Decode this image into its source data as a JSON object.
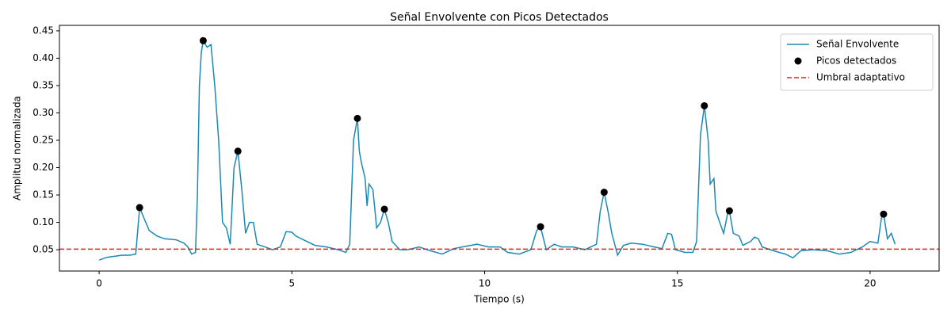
{
  "chart_data": {
    "type": "line",
    "title": "Señal Envolvente con Picos Detectados",
    "x_label": "Tiempo (s)",
    "y_label": "Amplitud normalizada",
    "xlim": [
      -1.03,
      21.79
    ],
    "ylim": [
      0.011,
      0.46
    ],
    "xticks": [
      0,
      5,
      10,
      15,
      20
    ],
    "yticks": [
      0.05,
      {
        "value": 0.1,
        "label": "0.10"
      },
      0.15,
      {
        "value": 0.2,
        "label": "0.20"
      },
      0.25,
      {
        "value": 0.3,
        "label": "0.30"
      },
      0.35,
      {
        "value": 0.4,
        "label": "0.40"
      },
      0.45
    ],
    "grid": false,
    "legend_position": "upper-right",
    "series": [
      {
        "name": "Señal Envolvente",
        "kind": "line",
        "color": "#1a8ab4",
        "x": [
          0,
          0.2,
          0.4,
          0.6,
          0.8,
          0.95,
          1.05,
          1.15,
          1.3,
          1.5,
          1.7,
          2.0,
          2.2,
          2.3,
          2.4,
          2.5,
          2.55,
          2.6,
          2.65,
          2.7,
          2.8,
          2.9,
          3.0,
          3.1,
          3.2,
          3.3,
          3.4,
          3.5,
          3.6,
          3.7,
          3.8,
          3.9,
          4.0,
          4.1,
          4.3,
          4.5,
          4.7,
          4.85,
          5.0,
          5.1,
          5.3,
          5.6,
          5.9,
          6.2,
          6.4,
          6.5,
          6.6,
          6.7,
          6.75,
          6.8,
          6.9,
          6.95,
          7.0,
          7.1,
          7.2,
          7.3,
          7.4,
          7.5,
          7.6,
          7.8,
          8.0,
          8.3,
          8.6,
          8.9,
          9.2,
          9.5,
          9.8,
          10.1,
          10.4,
          10.6,
          10.9,
          11.2,
          11.35,
          11.45,
          11.6,
          11.8,
          12.0,
          12.3,
          12.6,
          12.9,
          13.0,
          13.1,
          13.2,
          13.3,
          13.45,
          13.6,
          13.8,
          14.1,
          14.4,
          14.6,
          14.75,
          14.85,
          14.95,
          15.2,
          15.4,
          15.5,
          15.6,
          15.7,
          15.8,
          15.85,
          15.95,
          16.0,
          16.1,
          16.2,
          16.3,
          16.35,
          16.45,
          16.6,
          16.7,
          16.9,
          17.0,
          17.1,
          17.2,
          17.5,
          17.8,
          18.0,
          18.2,
          18.5,
          18.9,
          19.2,
          19.5,
          19.8,
          20.0,
          20.2,
          20.3,
          20.35,
          20.45,
          20.55,
          20.65
        ],
        "values": [
          0.031,
          0.036,
          0.038,
          0.04,
          0.04,
          0.042,
          0.127,
          0.11,
          0.085,
          0.075,
          0.07,
          0.068,
          0.062,
          0.055,
          0.042,
          0.045,
          0.15,
          0.35,
          0.41,
          0.432,
          0.42,
          0.425,
          0.35,
          0.25,
          0.1,
          0.09,
          0.06,
          0.2,
          0.23,
          0.16,
          0.08,
          0.1,
          0.1,
          0.06,
          0.055,
          0.05,
          0.055,
          0.083,
          0.082,
          0.075,
          0.068,
          0.058,
          0.055,
          0.05,
          0.045,
          0.06,
          0.25,
          0.29,
          0.23,
          0.21,
          0.18,
          0.13,
          0.17,
          0.16,
          0.09,
          0.1,
          0.124,
          0.1,
          0.065,
          0.05,
          0.05,
          0.055,
          0.048,
          0.042,
          0.052,
          0.056,
          0.06,
          0.055,
          0.055,
          0.045,
          0.042,
          0.05,
          0.085,
          0.092,
          0.05,
          0.06,
          0.055,
          0.055,
          0.05,
          0.06,
          0.12,
          0.155,
          0.12,
          0.08,
          0.04,
          0.058,
          0.062,
          0.06,
          0.055,
          0.052,
          0.08,
          0.078,
          0.05,
          0.045,
          0.045,
          0.065,
          0.26,
          0.313,
          0.25,
          0.17,
          0.18,
          0.12,
          0.1,
          0.08,
          0.115,
          0.121,
          0.08,
          0.075,
          0.058,
          0.065,
          0.073,
          0.07,
          0.055,
          0.048,
          0.042,
          0.035,
          0.048,
          0.05,
          0.048,
          0.042,
          0.045,
          0.055,
          0.065,
          0.062,
          0.11,
          0.115,
          0.07,
          0.08,
          0.06
        ]
      },
      {
        "name": "Picos detectados",
        "kind": "scatter",
        "color": "#000000",
        "x": [
          1.05,
          2.7,
          3.6,
          6.7,
          7.4,
          11.45,
          13.1,
          15.7,
          16.35,
          20.35
        ],
        "values": [
          0.127,
          0.432,
          0.23,
          0.29,
          0.124,
          0.092,
          0.155,
          0.313,
          0.121,
          0.115
        ]
      },
      {
        "name": "Umbral adaptativo",
        "kind": "hline",
        "color": "#d62728",
        "value": 0.051
      }
    ]
  }
}
